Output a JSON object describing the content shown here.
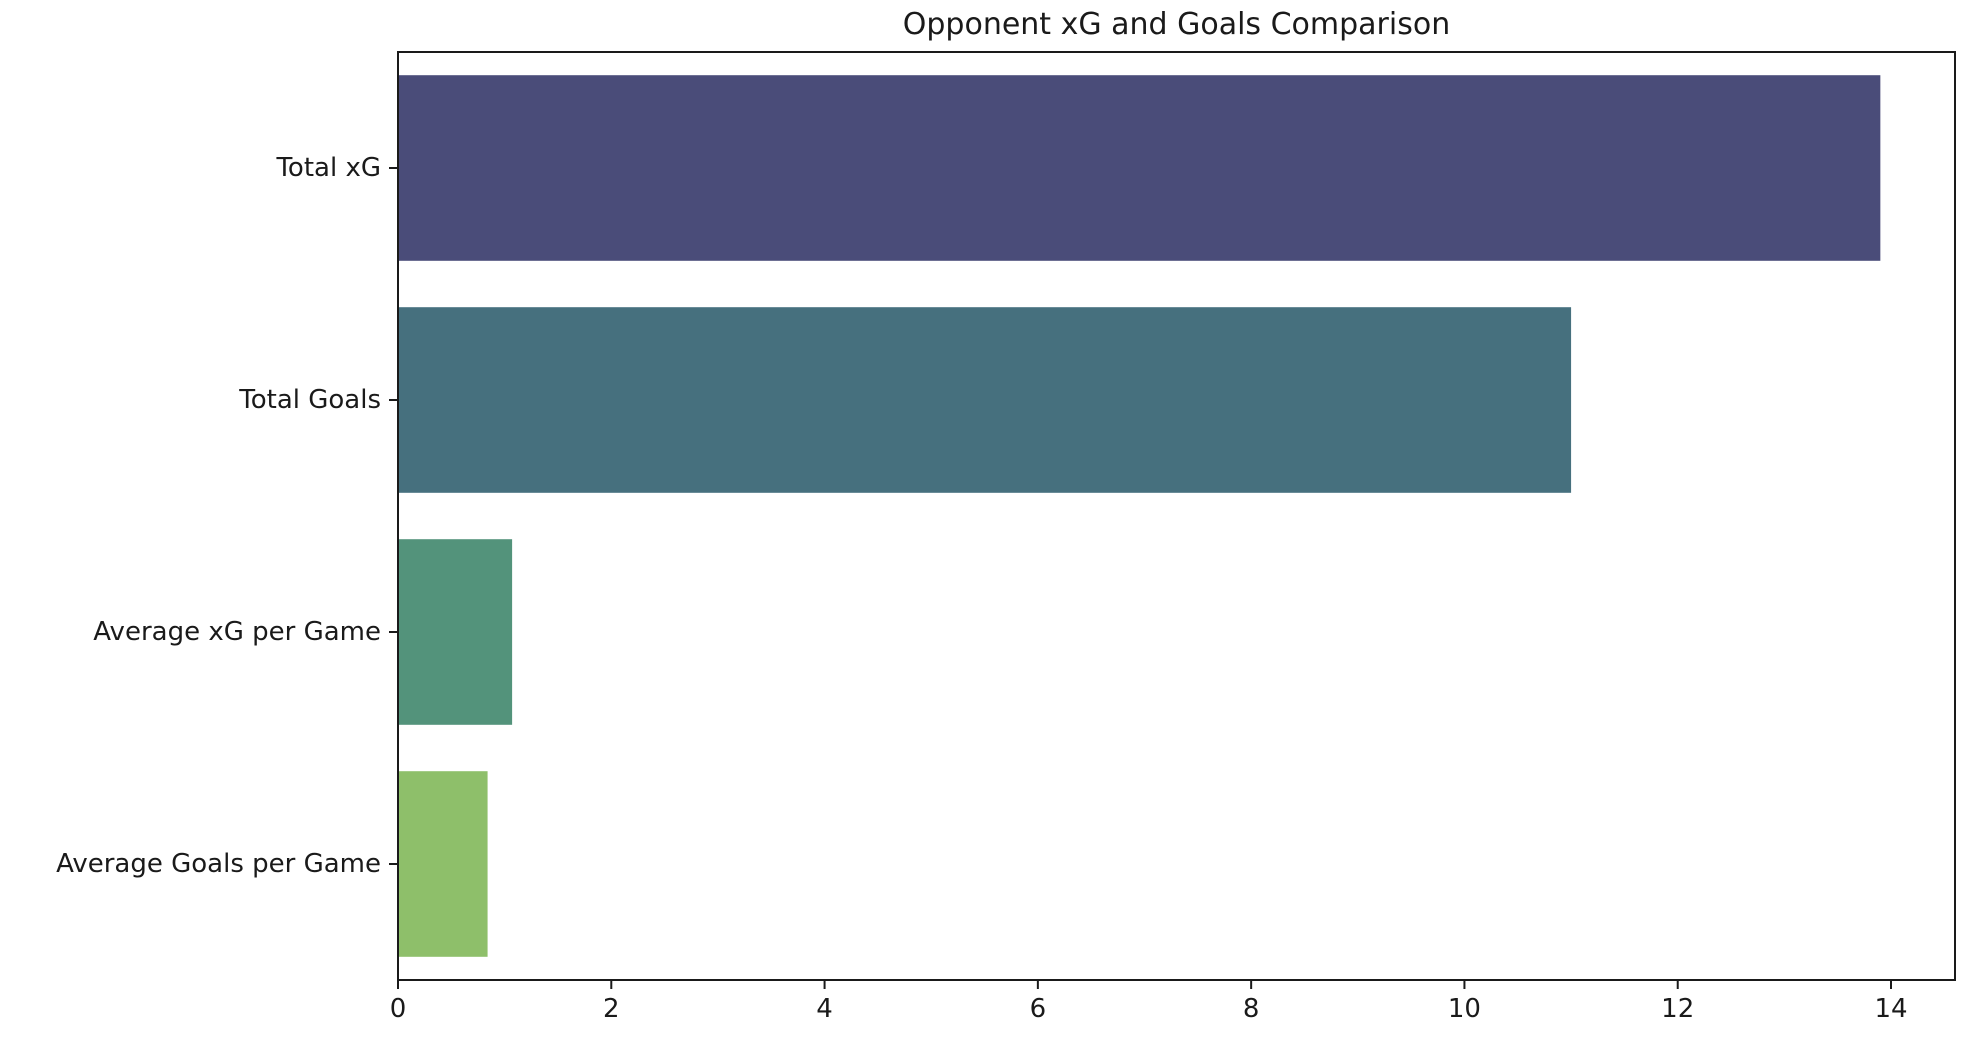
{
  "chart_data": {
    "type": "bar",
    "orientation": "horizontal",
    "title": "Opponent xG and Goals Comparison",
    "xlabel": "",
    "ylabel": "",
    "categories": [
      "Total xG",
      "Total Goals",
      "Average xG per Game",
      "Average Goals per Game"
    ],
    "values": [
      13.9,
      11.0,
      1.07,
      0.84
    ],
    "bar_colors": [
      "#4a4c79",
      "#46707e",
      "#53937b",
      "#8ebf6a"
    ],
    "xlim": [
      0,
      14.6
    ],
    "xticks": [
      0,
      2,
      4,
      6,
      8,
      10,
      12,
      14
    ],
    "grid": false,
    "legend": "none"
  }
}
